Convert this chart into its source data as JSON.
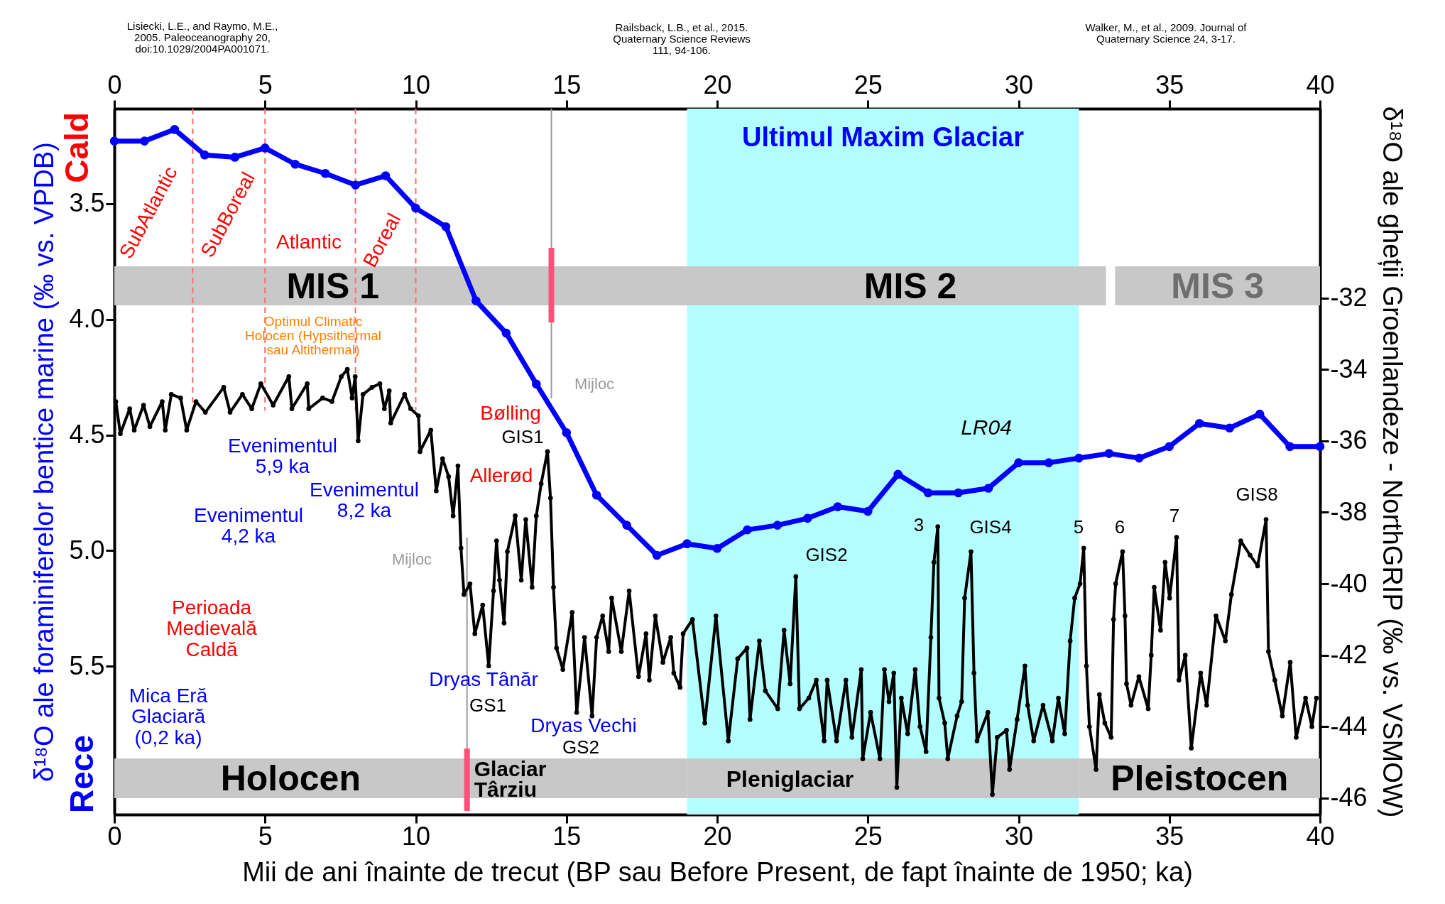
{
  "chart_data": {
    "type": "line",
    "xlabel": "Mii de ani înainte de trecut (BP sau Before Present, de fapt înainte de 1950; ka)",
    "ylabel": "δ¹⁸O ale foraminiferelor bentice marine (‰ vs. VPDB)",
    "y2label": "δ¹⁸O ale gheții Groenlandeze - NorthGRIP (‰ vs. VSMOW)",
    "xlim": [
      0,
      40
    ],
    "xticks": [
      0,
      5,
      10,
      15,
      20,
      25,
      30,
      35,
      40
    ],
    "x2lim": [
      0,
      40
    ],
    "x2ticks": [
      0,
      5,
      10,
      15,
      20,
      25,
      30,
      35,
      40
    ],
    "ylim": [
      6.14,
      3.09
    ],
    "yticks": [
      3.5,
      {
        "value": 4,
        "label": "4.0"
      },
      4.5,
      {
        "value": 5,
        "label": "5.0"
      },
      5.5
    ],
    "y2lim": [
      -46.46,
      -26.7
    ],
    "y2ticks": [
      -32,
      -34,
      -36,
      -38,
      -40,
      -42,
      -44,
      -46
    ],
    "marker": "circle",
    "line_style": "solid",
    "series": [
      {
        "color": "#0000ff",
        "x": [
          0,
          1,
          2,
          3,
          4,
          5,
          6,
          7,
          8,
          9,
          10,
          11,
          12,
          13,
          14,
          15,
          16,
          17,
          18,
          19,
          20,
          21,
          22,
          23,
          24,
          25,
          26,
          27,
          28,
          29,
          30,
          31,
          32,
          33,
          34,
          35,
          36,
          37,
          38,
          39,
          40
        ],
        "values": [
          3.23,
          3.23,
          3.18,
          3.29,
          3.3,
          3.26,
          3.33,
          3.37,
          3.42,
          3.38,
          3.52,
          3.6,
          3.92,
          4.06,
          4.28,
          4.49,
          4.76,
          4.89,
          5.02,
          4.97,
          4.99,
          4.91,
          4.89,
          4.86,
          4.81,
          4.83,
          4.67,
          4.75,
          4.75,
          4.73,
          4.62,
          4.62,
          4.6,
          4.58,
          4.6,
          4.55,
          4.45,
          4.47,
          4.41,
          4.55,
          4.55
        ]
      },
      {
        "color": "#000000",
        "axis": "y2",
        "x": [
          0.05,
          0.2,
          0.51,
          0.66,
          0.97,
          1.18,
          1.59,
          1.69,
          1.89,
          2.2,
          2.4,
          2.71,
          3.02,
          3.63,
          3.84,
          4.25,
          4.56,
          4.86,
          5.27,
          5.79,
          5.89,
          6.4,
          6.45,
          6.91,
          7.22,
          7.53,
          7.73,
          7.89,
          7.99,
          8.09,
          8.25,
          8.55,
          8.81,
          8.96,
          9.12,
          9.17,
          9.63,
          9.83,
          10.09,
          10.14,
          10.5,
          10.68,
          10.89,
          11.09,
          11.24,
          11.4,
          11.5,
          11.6,
          11.8,
          11.96,
          12.22,
          12.42,
          12.58,
          12.68,
          12.78,
          12.93,
          13.04,
          13.3,
          13.5,
          13.65,
          13.86,
          14.0,
          14.16,
          14.37,
          14.47,
          14.57,
          14.67,
          14.88,
          15.19,
          15.34,
          15.6,
          15.85,
          16.0,
          16.2,
          16.4,
          16.5,
          16.82,
          17.08,
          17.39,
          17.64,
          17.75,
          17.95,
          18.2,
          18.46,
          18.56,
          18.77,
          18.87,
          19.18,
          19.59,
          19.96,
          20.37,
          20.68,
          20.99,
          21.09,
          21.4,
          21.6,
          22.01,
          22.22,
          22.42,
          22.61,
          22.73,
          23.04,
          23.29,
          23.55,
          23.65,
          23.96,
          24.27,
          24.47,
          24.78,
          24.83,
          25.09,
          25.4,
          25.55,
          25.7,
          25.86,
          25.96,
          26.11,
          26.32,
          26.57,
          26.73,
          26.93,
          27.09,
          27.19,
          27.32,
          27.36,
          27.55,
          27.65,
          27.96,
          28.11,
          28.21,
          28.42,
          28.52,
          28.62,
          28.98,
          29.13,
          29.29,
          29.6,
          29.7,
          29.95,
          30.21,
          30.3,
          30.5,
          30.81,
          31.12,
          31.32,
          31.53,
          31.71,
          31.86,
          32.04,
          32.16,
          32.25,
          32.35,
          32.57,
          32.68,
          32.86,
          33.07,
          33.15,
          33.22,
          33.45,
          33.53,
          33.58,
          33.73,
          33.99,
          34.3,
          34.4,
          34.5,
          34.71,
          34.86,
          35.01,
          35.24,
          35.32,
          35.53,
          35.73,
          36.04,
          36.24,
          36.55,
          36.86,
          37.06,
          37.37,
          37.68,
          37.93,
          38.21,
          38.29,
          38.5,
          38.75,
          39.01,
          39.21,
          39.52,
          39.73,
          39.88
        ],
        "values": [
          -34.9,
          -35.8,
          -35.1,
          -35.7,
          -35.0,
          -35.6,
          -34.9,
          -35.7,
          -34.7,
          -34.8,
          -35.7,
          -34.9,
          -35.2,
          -34.5,
          -35.2,
          -34.7,
          -35.1,
          -34.4,
          -35.0,
          -34.2,
          -35.1,
          -34.4,
          -35.1,
          -34.8,
          -34.9,
          -34.2,
          -34.0,
          -34.8,
          -34.2,
          -36.0,
          -34.7,
          -34.5,
          -34.4,
          -35.1,
          -34.6,
          -35.5,
          -34.7,
          -35.1,
          -35.3,
          -36.3,
          -35.7,
          -37.4,
          -36.5,
          -37.0,
          -38.1,
          -36.7,
          -39.0,
          -40.3,
          -40.0,
          -41.4,
          -40.6,
          -42.3,
          -40.2,
          -38.8,
          -39.9,
          -41.1,
          -39.1,
          -38.1,
          -39.9,
          -38.2,
          -40.1,
          -38.1,
          -37.2,
          -36.3,
          -37.6,
          -40.1,
          -41.8,
          -42.4,
          -40.8,
          -43.6,
          -41.5,
          -43.7,
          -41.5,
          -40.9,
          -41.9,
          -40.4,
          -41.9,
          -40.2,
          -42.6,
          -41.4,
          -42.7,
          -40.9,
          -42.2,
          -41.5,
          -42.5,
          -42.9,
          -41.4,
          -41.0,
          -43.9,
          -40.9,
          -44.4,
          -42.1,
          -41.8,
          -43.8,
          -41.6,
          -43.0,
          -43.5,
          -41.3,
          -42.8,
          -39.8,
          -43.5,
          -43.2,
          -42.7,
          -44.4,
          -42.7,
          -44.4,
          -42.7,
          -44.3,
          -42.4,
          -44.9,
          -43.6,
          -44.9,
          -42.4,
          -43.3,
          -42.5,
          -45.7,
          -43.2,
          -44.2,
          -42.4,
          -44.0,
          -44.7,
          -41.5,
          -39.4,
          -38.4,
          -43.2,
          -43.9,
          -44.9,
          -43.7,
          -43.3,
          -40.4,
          -39.1,
          -42.5,
          -44.4,
          -43.6,
          -45.9,
          -44.3,
          -44.1,
          -45.2,
          -43.8,
          -42.3,
          -43.4,
          -44.4,
          -43.4,
          -44.4,
          -43.2,
          -44.2,
          -41.6,
          -40.4,
          -40.0,
          -39.0,
          -42.3,
          -44.0,
          -45.2,
          -43.1,
          -43.9,
          -44.3,
          -41.0,
          -40.0,
          -39.1,
          -40.9,
          -42.8,
          -43.4,
          -42.6,
          -43.5,
          -42.0,
          -40.1,
          -41.3,
          -39.4,
          -40.4,
          -38.7,
          -42.7,
          -42.0,
          -44.6,
          -42.5,
          -43.4,
          -40.9,
          -41.6,
          -40.3,
          -38.8,
          -39.2,
          -39.5,
          -38.2,
          -41.9,
          -42.7,
          -43.7,
          -42.2,
          -44.3,
          -43.2,
          -44.0,
          -43.2
        ]
      }
    ],
    "bands": [
      {
        "axis": "x",
        "from": 19,
        "to": 32,
        "label": "Ultimul Maxim Glaciar",
        "color": "#b3ffff"
      },
      {
        "axis": "x",
        "from": 0,
        "to": 14.5,
        "label": "MIS 1",
        "color": "#c8c8c8"
      },
      {
        "axis": "x",
        "from": 14.5,
        "to": 32.9,
        "label": "MIS 2",
        "color": "#c8c8c8"
      },
      {
        "axis": "x",
        "from": 33.2,
        "to": 40,
        "label": "MIS 3",
        "color": "#c8c8c8"
      },
      {
        "axis": "x",
        "from": 0,
        "to": 11.7,
        "label": "Holocen",
        "color": "#c8c8c8"
      },
      {
        "axis": "x",
        "from": 11.7,
        "to": 19,
        "label": "Glaciar\nTârziu",
        "color": "#c8c8c8"
      },
      {
        "axis": "x",
        "from": 19,
        "to": 32,
        "label": "Pleniglaciar",
        "color": "#c8c8c8"
      },
      {
        "axis": "x",
        "from": 32,
        "to": 40,
        "label": "Pleistocen",
        "color": "#c8c8c8"
      }
    ],
    "ref_lines": [
      {
        "axis": "x",
        "value": 2.6,
        "color": "#ff6b6b",
        "line_style": "dashed"
      },
      {
        "axis": "x",
        "value": 5,
        "color": "#ff6b6b",
        "line_style": "dashed"
      },
      {
        "axis": "x",
        "value": 8,
        "color": "#ff6b6b",
        "line_style": "dashed"
      },
      {
        "axis": "x",
        "value": 10,
        "color": "#ff6b6b",
        "line_style": "dashed"
      },
      {
        "axis": "x",
        "value": 14.5,
        "color": "#9a9a9a",
        "line_style": "solid"
      },
      {
        "axis": "x",
        "value": 11.7,
        "color": "#9a9a9a",
        "line_style": "solid"
      },
      {
        "axis": "x",
        "value": 14.5,
        "color": "#ff5078",
        "line_style": "solid"
      },
      {
        "axis": "x",
        "value": 11.7,
        "color": "#ff5078",
        "line_style": "solid"
      }
    ],
    "annotations": [
      "SubAtlantic",
      "SubBoreal",
      "Atlantic",
      "Boreal",
      "Optimul Climatic\nHolocen (Hypsithermal\nsau Altithermal)",
      "Evenimentul\n5,9 ka",
      "Evenimentul\n8,2 ka",
      "Evenimentul\n4,2 ka",
      "Perioada\nMedievală\nCaldă",
      "Mica Eră\nGlaciară\n(0,2 ka)",
      "Bølling",
      "GIS1",
      "Allerød",
      "Dryas Tânăr",
      "GS1",
      "Dryas Vechi",
      "GS2",
      "Mijloc",
      "Mijloc",
      "LR04",
      "GIS2",
      "3",
      "GIS4",
      "5",
      "6",
      "7",
      "GIS8",
      "Cald",
      "Rece",
      "Lisiecki, L.E., and Raymo, M.E.,\n2005. Paleoceanography 20,\ndoi:10.1029/2004PA001071.",
      "Railsback, L.B., et al., 2015.\nQuaternary Science  Reviews\n111, 94-106.",
      "Walker, M., et al., 2009. Journal of\nQuaternary Science 24, 3-17."
    ]
  }
}
